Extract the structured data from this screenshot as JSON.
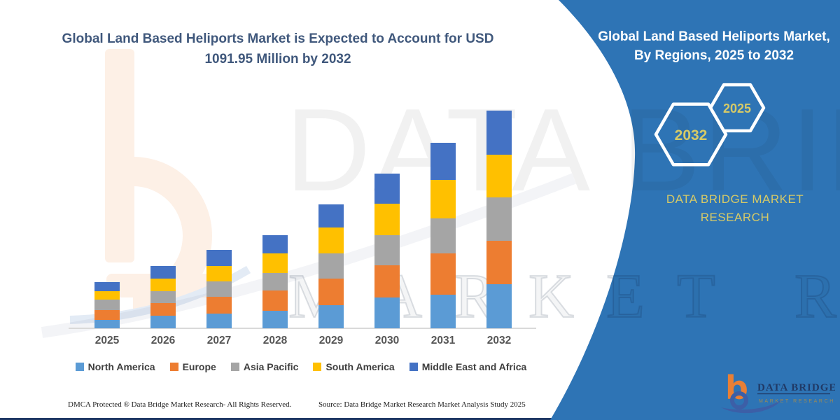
{
  "page": {
    "background": "#ffffff",
    "accent_blue": "#2e74b5",
    "gold": "#d6ca67",
    "navy_line": "#1f3864"
  },
  "main_title": "Global Land Based Heliports Market is Expected to Account for USD 1091.95 Million by 2032",
  "chart_data": {
    "type": "bar",
    "stacked": true,
    "title": "Global Land Based Heliports Market is Expected to Account for USD 1091.95 Million by 2032",
    "unit": "USD Million",
    "categories": [
      "2025",
      "2026",
      "2027",
      "2028",
      "2029",
      "2030",
      "2031",
      "2032"
    ],
    "series": [
      {
        "name": "North America",
        "color": "#5B9BD5",
        "values": [
          42,
          64,
          74,
          89,
          115,
          156,
          167,
          220
        ]
      },
      {
        "name": "Europe",
        "color": "#ED7D31",
        "values": [
          49,
          62,
          85,
          102,
          134,
          160,
          208,
          220
        ]
      },
      {
        "name": "Asia Pacific",
        "color": "#A5A5A5",
        "values": [
          53,
          61,
          78,
          88,
          125,
          150,
          178,
          217
        ]
      },
      {
        "name": "South America",
        "color": "#FFC000",
        "values": [
          41,
          64,
          74,
          96,
          132,
          158,
          191,
          214
        ]
      },
      {
        "name": "Middle East and Africa",
        "color": "#4472C4",
        "values": [
          47,
          61,
          82,
          91,
          117,
          152,
          187,
          221
        ]
      }
    ],
    "totals": [
      232,
      312,
      393,
      466,
      623,
      776,
      931,
      1092
    ],
    "annotations": [
      "USD 1091.95 Million by 2032"
    ],
    "legend_position": "bottom",
    "grid": false,
    "y_axis_visible": false,
    "x_axis_line_color": "#d9d9d9"
  },
  "side_panel": {
    "title": "Global Land Based Heliports Market, By Regions, 2025 to 2032",
    "hexagon_back_year": "2032",
    "hexagon_front_year": "2025",
    "brand_text": "DATA BRIDGE MARKET RESEARCH"
  },
  "watermark": {
    "line1": "DATA BRIDGE",
    "line2": "MARKET RESEARCH"
  },
  "footer": {
    "dmca": "DMCA Protected ® Data Bridge Market Research-  All Rights Reserved.",
    "source": "Source: Data Bridge Market Research  Market Analysis Study 2025"
  },
  "logo": {
    "title": "DATA BRIDGE",
    "subtitle": "MARKET RESEARCH"
  }
}
